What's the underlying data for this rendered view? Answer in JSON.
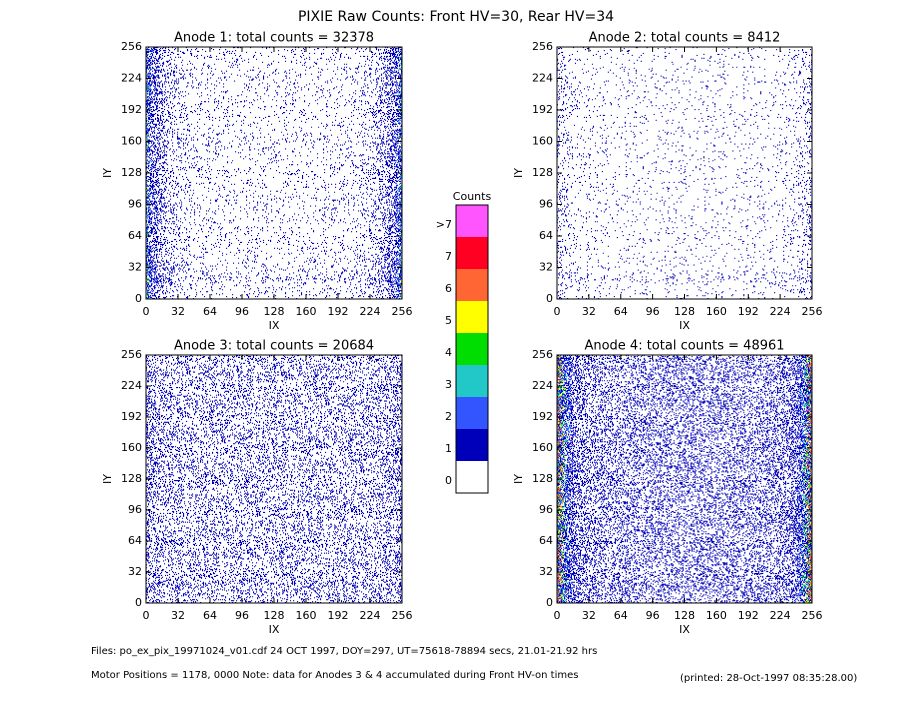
{
  "title": "PIXIE Raw Counts:  Front HV=30, Rear HV=34",
  "chart_data": [
    {
      "type": "heatmap",
      "title": "Anode 1: total counts = 32378",
      "xlabel": "IX",
      "ylabel": "IY",
      "xlim": [
        0,
        256
      ],
      "ylim": [
        0,
        256
      ],
      "xticks": [
        0,
        32,
        64,
        96,
        128,
        160,
        192,
        224,
        256
      ],
      "yticks": [
        0,
        32,
        64,
        96,
        128,
        160,
        192,
        224,
        256
      ]
    },
    {
      "type": "heatmap",
      "title": "Anode 2: total counts = 8412",
      "xlabel": "IX",
      "ylabel": "IY",
      "xlim": [
        0,
        256
      ],
      "ylim": [
        0,
        256
      ],
      "xticks": [
        0,
        32,
        64,
        96,
        128,
        160,
        192,
        224,
        256
      ],
      "yticks": [
        0,
        32,
        64,
        96,
        128,
        160,
        192,
        224,
        256
      ]
    },
    {
      "type": "heatmap",
      "title": "Anode 3: total counts = 20684",
      "xlabel": "IX",
      "ylabel": "IY",
      "xlim": [
        0,
        256
      ],
      "ylim": [
        0,
        256
      ],
      "xticks": [
        0,
        32,
        64,
        96,
        128,
        160,
        192,
        224,
        256
      ],
      "yticks": [
        0,
        32,
        64,
        96,
        128,
        160,
        192,
        224,
        256
      ]
    },
    {
      "type": "heatmap",
      "title": "Anode 4: total counts = 48961",
      "xlabel": "IX",
      "ylabel": "IY",
      "xlim": [
        0,
        256
      ],
      "ylim": [
        0,
        256
      ],
      "xticks": [
        0,
        32,
        64,
        96,
        128,
        160,
        192,
        224,
        256
      ],
      "yticks": [
        0,
        32,
        64,
        96,
        128,
        160,
        192,
        224,
        256
      ]
    }
  ],
  "colorbar": {
    "title": "Counts",
    "levels": [
      {
        "label": "0",
        "color": "#ffffff"
      },
      {
        "label": "1",
        "color": "#0000bb"
      },
      {
        "label": "2",
        "color": "#3355ff"
      },
      {
        "label": "3",
        "color": "#22c8c8"
      },
      {
        "label": "4",
        "color": "#00dd00"
      },
      {
        "label": "5",
        "color": "#ffff00"
      },
      {
        "label": "6",
        "color": "#ff6633"
      },
      {
        "label": "7",
        "color": "#ff0022"
      },
      {
        "label": ">7",
        "color": "#ff55ff"
      }
    ]
  },
  "footer": {
    "files": "Files: po_ex_pix_19971024_v01.cdf    24 OCT 1997, DOY=297, UT=75618-78894 secs, 21.01-21.92 hrs",
    "motor": "Motor Positions = 1178, 0000    Note: data for Anodes 3 & 4 accumulated during Front HV-on times",
    "printed": "(printed: 28-Oct-1997 08:35:28.00)"
  }
}
